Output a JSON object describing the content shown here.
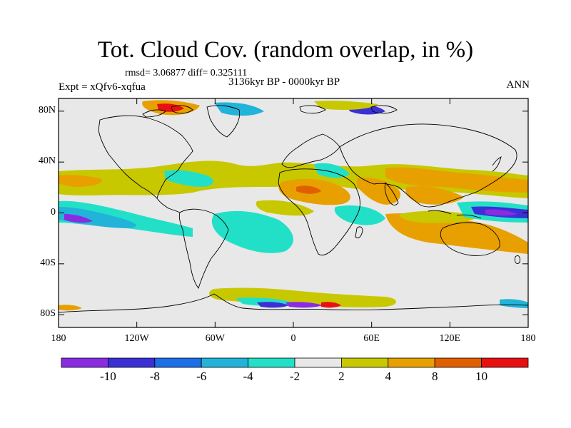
{
  "title": "Tot. Cloud Cov. (random overlap, in %)",
  "stats": "rmsd= 3.06877 diff= 0.325111",
  "expt": "Expt = xQfv6-xqfua",
  "period": "3136kyr BP - 0000kyr BP",
  "season": "ANN",
  "lat_ticks": [
    {
      "lat": 80,
      "label": "80N"
    },
    {
      "lat": 40,
      "label": "40N"
    },
    {
      "lat": 0,
      "label": "0"
    },
    {
      "lat": -40,
      "label": "40S"
    },
    {
      "lat": -80,
      "label": "80S"
    }
  ],
  "lon_ticks": [
    {
      "lon": -180,
      "label": "180"
    },
    {
      "lon": -120,
      "label": "120W"
    },
    {
      "lon": -60,
      "label": "60W"
    },
    {
      "lon": 0,
      "label": "0"
    },
    {
      "lon": 60,
      "label": "60E"
    },
    {
      "lon": 120,
      "label": "120E"
    },
    {
      "lon": 180,
      "label": "180"
    }
  ],
  "colorbar": {
    "levels": [
      -10,
      -8,
      -6,
      -4,
      -2,
      2,
      4,
      8,
      10
    ],
    "labels": [
      "-10",
      "-8",
      "-6",
      "-4",
      "-2",
      "2",
      "4",
      "8",
      "10"
    ],
    "colors": [
      "#8a2be2",
      "#3b2fd6",
      "#1c6fe8",
      "#22b4d8",
      "#22e0c8",
      "#e8e8e8",
      "#c8c800",
      "#e8a000",
      "#e06000",
      "#e81010"
    ]
  },
  "colors": {
    "background_field": "#e8e8e8",
    "coastline": "#000000"
  }
}
